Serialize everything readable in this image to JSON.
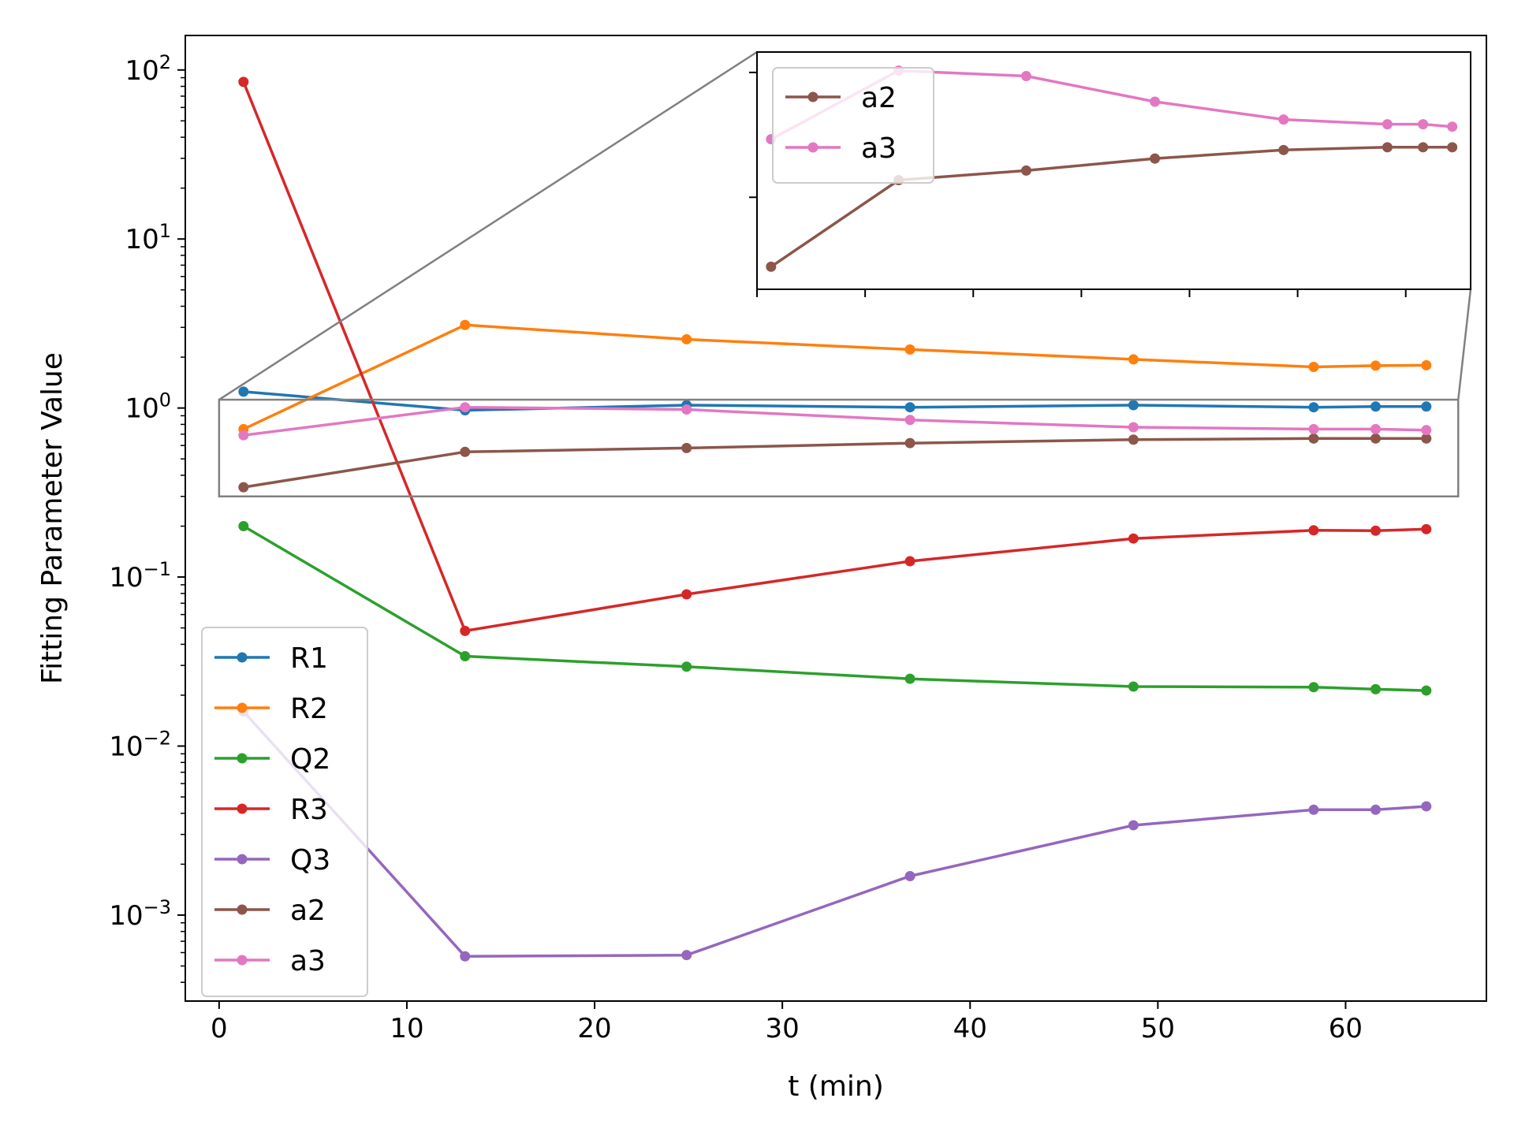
{
  "chart_data": {
    "type": "line",
    "xlabel": "t (min)",
    "ylabel": "Fitting Parameter Value",
    "yscale": "log",
    "xlim": [
      -1.8,
      67.5
    ],
    "ylim": [
      0.00031,
      160
    ],
    "xticks": [
      {
        "value": 0,
        "label": "0"
      },
      {
        "value": 10,
        "label": "10"
      },
      {
        "value": 20,
        "label": "20"
      },
      {
        "value": 30,
        "label": "30"
      },
      {
        "value": 40,
        "label": "40"
      },
      {
        "value": 50,
        "label": "50"
      },
      {
        "value": 60,
        "label": "60"
      }
    ],
    "yticks": [
      {
        "value": 0.001,
        "base": "10",
        "exp": "−3"
      },
      {
        "value": 0.01,
        "base": "10",
        "exp": "−2"
      },
      {
        "value": 0.1,
        "base": "10",
        "exp": "−1"
      },
      {
        "value": 1,
        "base": "10",
        "exp": "0"
      },
      {
        "value": 10,
        "base": "10",
        "exp": "1"
      },
      {
        "value": 100,
        "base": "10",
        "exp": "2"
      }
    ],
    "grid": false,
    "legend_position": "lower-left",
    "x": [
      1.3,
      13.1,
      24.9,
      36.8,
      48.7,
      58.3,
      61.6,
      64.3
    ],
    "series": [
      {
        "name": "R1",
        "color": "#1f77b4",
        "values": [
          1.25,
          0.97,
          1.04,
          1.01,
          1.04,
          1.01,
          1.02,
          1.02
        ]
      },
      {
        "name": "R2",
        "color": "#ff7f0e",
        "values": [
          0.75,
          3.1,
          2.55,
          2.22,
          1.94,
          1.75,
          1.78,
          1.79
        ]
      },
      {
        "name": "Q2",
        "color": "#2ca02c",
        "values": [
          0.2,
          0.034,
          0.0295,
          0.025,
          0.0225,
          0.0223,
          0.0217,
          0.0213
        ]
      },
      {
        "name": "R3",
        "color": "#d62728",
        "values": [
          85,
          0.048,
          0.079,
          0.124,
          0.169,
          0.189,
          0.188,
          0.192
        ]
      },
      {
        "name": "Q3",
        "color": "#9467bd",
        "values": [
          0.016,
          0.00057,
          0.00058,
          0.0017,
          0.0034,
          0.0042,
          0.0042,
          0.0044
        ]
      },
      {
        "name": "a2",
        "color": "#8c564b",
        "values": [
          0.34,
          0.55,
          0.58,
          0.62,
          0.65,
          0.66,
          0.66,
          0.66
        ]
      },
      {
        "name": "a3",
        "color": "#e377c2",
        "values": [
          0.69,
          1.01,
          0.98,
          0.85,
          0.77,
          0.75,
          0.75,
          0.74
        ]
      }
    ],
    "inset": {
      "region_xlim": [
        0,
        66
      ],
      "region_ylim": [
        0.3,
        1.12
      ],
      "inset_ylim": [
        0.3,
        1.12
      ],
      "series_names": [
        "a2",
        "a3"
      ],
      "legend_position": "upper-left"
    }
  }
}
